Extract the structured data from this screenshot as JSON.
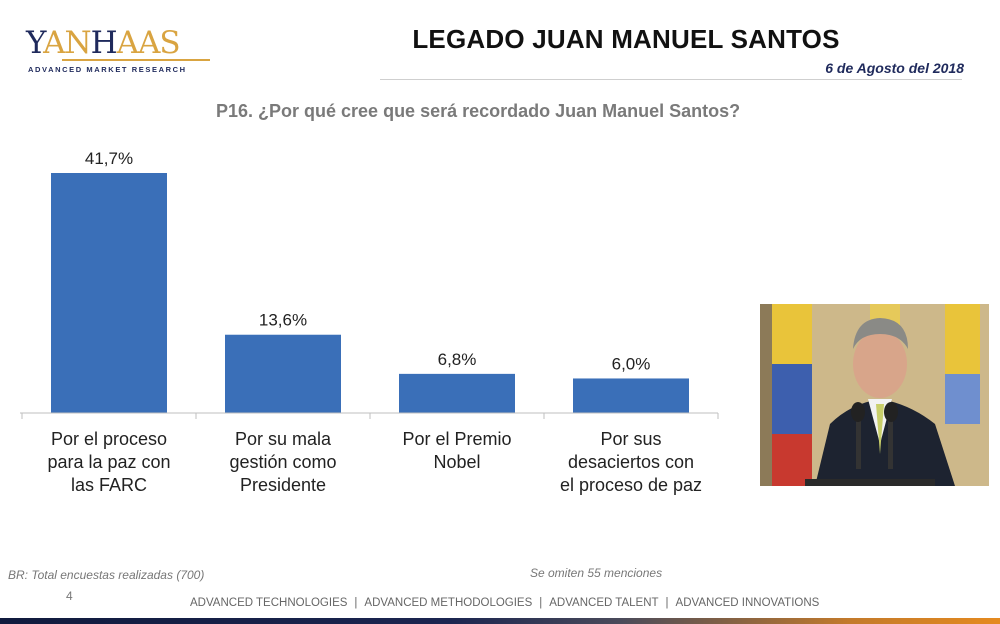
{
  "logo": {
    "part1": "Y",
    "part2": "AN",
    "part3": "H",
    "part4": "AAS",
    "tagline": "ADVANCED MARKET RESEARCH",
    "colors": {
      "navy": "#1f2a5c",
      "gold": "#d9a441"
    }
  },
  "header": {
    "title": "LEGADO JUAN MANUEL SANTOS",
    "date": "6 de Agosto del 2018"
  },
  "question": "P16. ¿Por qué cree que será recordado Juan Manuel Santos?",
  "chart_data": {
    "type": "bar",
    "title": "P16. ¿Por qué cree que será recordado Juan Manuel Santos?",
    "xlabel": "",
    "ylabel": "",
    "categories": [
      [
        "Por el proceso",
        "para la paz con",
        "las FARC"
      ],
      [
        "Por su mala",
        "gestión como",
        "Presidente"
      ],
      [
        "Por el Premio",
        "Nobel"
      ],
      [
        "Por sus",
        "desaciertos con",
        "el proceso de paz"
      ]
    ],
    "values": [
      41.7,
      13.6,
      6.8,
      6.0
    ],
    "value_labels": [
      "41,7%",
      "13,6%",
      "6,8%",
      "6,0%"
    ],
    "unit": "%",
    "ylim": [
      0,
      41.7
    ],
    "grid": false,
    "legend": "none",
    "bar_color": "#3a6fb8"
  },
  "photo": {
    "description": "Juan Manuel Santos speaking at microphones in front of Colombian flags"
  },
  "notes": {
    "base": "BR: Total encuestas realizadas (700)",
    "omitted": "Se omiten 55 menciones"
  },
  "page_number": "4",
  "footer": {
    "links": [
      "ADVANCED TECHNOLOGIES",
      "ADVANCED METHODOLOGIES",
      "ADVANCED TALENT",
      "ADVANCED INNOVATIONS"
    ],
    "separator": "|"
  }
}
